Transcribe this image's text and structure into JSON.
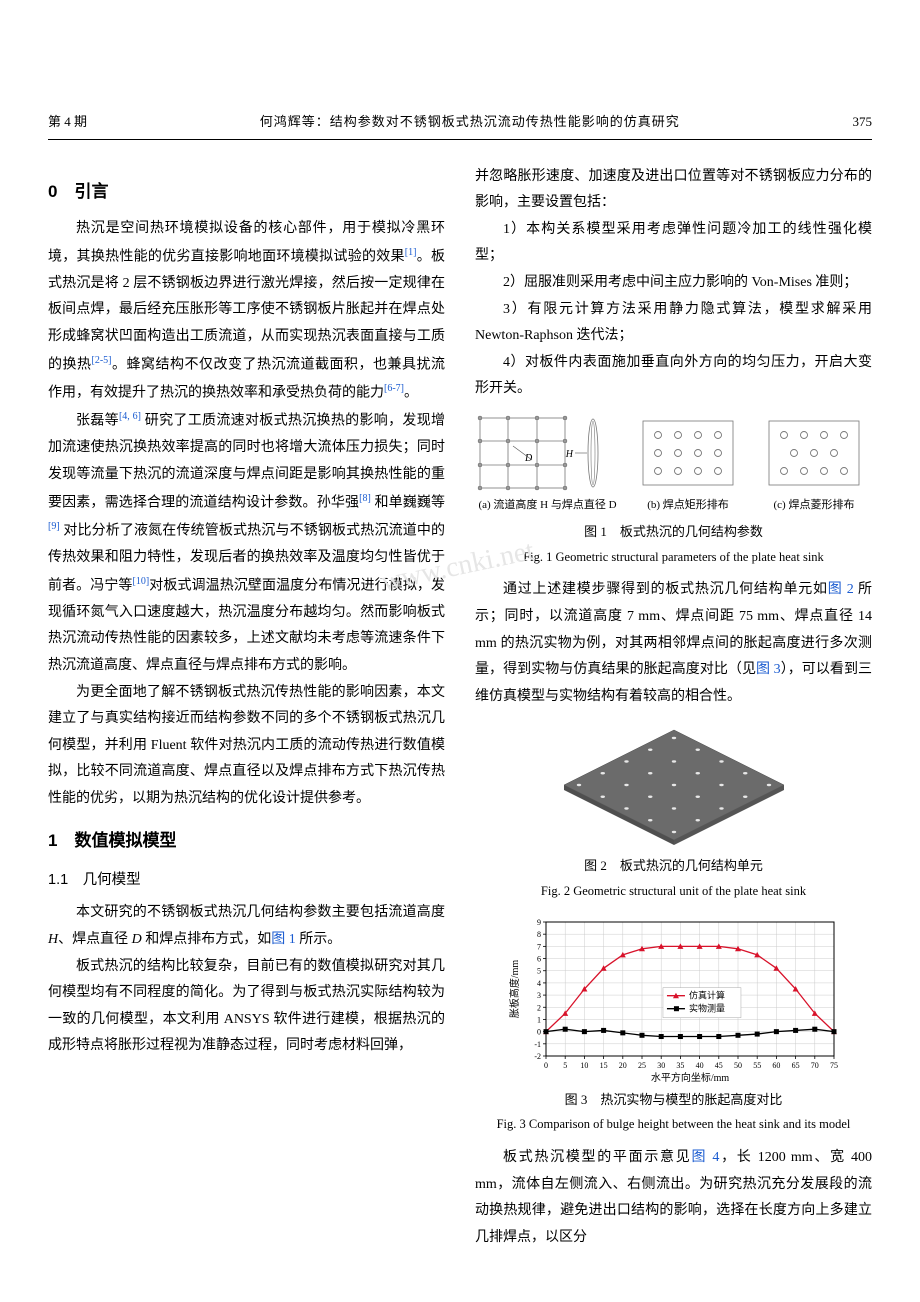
{
  "header": {
    "issue": "第 4 期",
    "running_title": "何鸿辉等：结构参数对不锈钢板式热沉流动传热性能影响的仿真研究",
    "page_number": "375"
  },
  "watermark": "www.cnki.net",
  "left_column": {
    "sec0": {
      "title": "0　引言"
    },
    "p1_a": "热沉是空间热环境模拟设备的核心部件，用于模拟冷黑环境，其换热性能的优劣直接影响地面环境模拟试验的效果",
    "p1_ref1": "[1]",
    "p1_b": "。板式热沉是将 2 层不锈钢板边界进行激光焊接，然后按一定规律在板间点焊，最后经充压胀形等工序使不锈钢板片胀起并在焊点处形成蜂窝状凹面构造出工质流道，从而实现热沉表面直接与工质的换热",
    "p1_ref2": "[2-5]",
    "p1_c": "。蜂窝结构不仅改变了热沉流道截面积，也兼具扰流作用，有效提升了热沉的换热效率和承受热负荷的能力",
    "p1_ref3": "[6-7]",
    "p1_d": "。",
    "p2_a": "张磊等",
    "p2_ref1": "[4, 6]",
    "p2_b": " 研究了工质流速对板式热沉换热的影响，发现增加流速使热沉换热效率提高的同时也将增大流体压力损失；同时发现等流量下热沉的流道深度与焊点间距是影响其换热性能的重要因素，需选择合理的流道结构设计参数。孙华强",
    "p2_ref2": "[8]",
    "p2_c": " 和单巍巍等",
    "p2_ref3": "[9]",
    "p2_d": " 对比分析了液氮在传统管板式热沉与不锈钢板式热沉流道中的传热效果和阻力特性，发现后者的换热效率及温度均匀性皆优于前者。冯宁等",
    "p2_ref4": "[10]",
    "p2_e": "对板式调温热沉壁面温度分布情况进行模拟，发现循环氮气入口速度越大，热沉温度分布越均匀。然而影响板式热沉流动传热性能的因素较多，上述文献均未考虑等流速条件下热沉流道高度、焊点直径与焊点排布方式的影响。",
    "p3": "为更全面地了解不锈钢板式热沉传热性能的影响因素，本文建立了与真实结构接近而结构参数不同的多个不锈钢板式热沉几何模型，并利用 Fluent 软件对热沉内工质的流动传热进行数值模拟，比较不同流道高度、焊点直径以及焊点排布方式下热沉传热性能的优劣，以期为热沉结构的优化设计提供参考。",
    "sec1": {
      "title": "1　数值模拟模型"
    },
    "sec1_1": {
      "title": "1.1　几何模型"
    },
    "p4_a": "本文研究的不锈钢板式热沉几何结构参数主要包括流道高度 ",
    "p4_H": "H",
    "p4_b": "、焊点直径 ",
    "p4_D": "D",
    "p4_c": " 和焊点排布方式，如",
    "p4_figref": "图 1",
    "p4_d": " 所示。",
    "p5": "板式热沉的结构比较复杂，目前已有的数值模拟研究对其几何模型均有不同程度的简化。为了得到与板式热沉实际结构较为一致的几何模型，本文利用 ANSYS 软件进行建模，根据热沉的成形特点将胀形过程视为准静态过程，同时考虑材料回弹，"
  },
  "right_column": {
    "p_cont": "并忽略胀形速度、加速度及进出口位置等对不锈钢板应力分布的影响，主要设置包括：",
    "li1": "1）本构关系模型采用考虑弹性问题冷加工的线性强化模型；",
    "li2": "2）屈服准则采用考虑中间主应力影响的 Von-Mises 准则；",
    "li3": "3）有限元计算方法采用静力隐式算法，模型求解采用 Newton-Raphson 迭代法；",
    "li4": "4）对板件内表面施加垂直向外方向的均匀压力，开启大变形开关。",
    "fig1": {
      "sub_a": "(a)  流道高度 H 与焊点直径 D",
      "sub_b": "(b)  焊点矩形排布",
      "sub_c": "(c)  焊点菱形排布",
      "caption_cn": "图 1　板式热沉的几何结构参数",
      "caption_en": "Fig. 1    Geometric structural parameters of the plate heat sink",
      "label_H": "H",
      "label_D": "D",
      "colors": {
        "stroke": "#666666",
        "fill": "#ffffff"
      }
    },
    "p6_a": "通过上述建模步骤得到的板式热沉几何结构单元如",
    "p6_figref": "图 2",
    "p6_b": " 所示；同时，以流道高度 7 mm、焊点间距 75 mm、焊点直径 14 mm 的热沉实物为例，对其两相邻焊点间的胀起高度进行多次测量，得到实物与仿真结果的胀起高度对比（见",
    "p6_figref2": "图 3",
    "p6_c": "），可以看到三维仿真模型与实物结构有着较高的相合性。",
    "fig2": {
      "caption_cn": "图 2　板式热沉的几何结构单元",
      "caption_en": "Fig. 2    Geometric structural unit of the plate heat sink",
      "plate_color": "#6b6b6b",
      "spots": {
        "rows": 5,
        "cols": 5
      }
    },
    "fig3": {
      "type": "line",
      "caption_cn": "图 3　热沉实物与模型的胀起高度对比",
      "caption_en": "Fig. 3    Comparison of bulge height between the heat sink and its model",
      "xlabel": "水平方向坐标/mm",
      "ylabel": "胀板高度/mm",
      "xlim": [
        0,
        75
      ],
      "ylim": [
        -2,
        9
      ],
      "xticks": [
        0,
        5,
        10,
        15,
        20,
        25,
        30,
        35,
        40,
        45,
        50,
        55,
        60,
        65,
        70,
        75
      ],
      "yticks": [
        -2,
        -1,
        0,
        1,
        2,
        3,
        4,
        5,
        6,
        7,
        8,
        9
      ],
      "axis_color": "#000000",
      "grid_color": "#cccccc",
      "tick_fontsize": 8,
      "label_fontsize": 10,
      "series": [
        {
          "name": "仿真计算",
          "color": "#d8122a",
          "marker": "triangle",
          "x": [
            0,
            5,
            10,
            15,
            20,
            25,
            30,
            35,
            40,
            45,
            50,
            55,
            60,
            65,
            70,
            75
          ],
          "y": [
            0.0,
            1.5,
            3.5,
            5.2,
            6.3,
            6.8,
            7.0,
            7.0,
            7.0,
            7.0,
            6.8,
            6.3,
            5.2,
            3.5,
            1.5,
            0.0
          ]
        },
        {
          "name": "实物测量",
          "color": "#000000",
          "marker": "square",
          "x": [
            0,
            5,
            10,
            15,
            20,
            25,
            30,
            35,
            40,
            45,
            50,
            55,
            60,
            65,
            70,
            75
          ],
          "y": [
            0.0,
            0.2,
            0.0,
            0.1,
            -0.1,
            -0.3,
            -0.4,
            -0.4,
            -0.4,
            -0.4,
            -0.3,
            -0.2,
            0.0,
            0.1,
            0.2,
            0.0
          ]
        }
      ],
      "legend_pos": "center"
    },
    "p7_a": "板式热沉模型的平面示意见",
    "p7_figref": "图 4",
    "p7_b": "，长 1200 mm、宽 400 mm，流体自左侧流入、右侧流出。为研究热沉充分发展段的流动换热规律，避免进出口结构的影响，选择在长度方向上多建立几排焊点，以区分"
  }
}
